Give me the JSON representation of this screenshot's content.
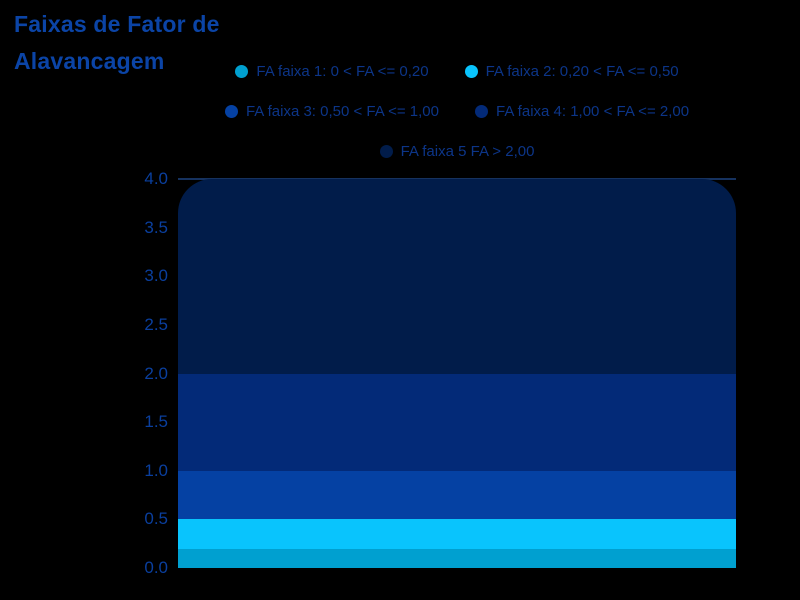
{
  "title_lines": [
    "Faixas de Fator de",
    "Alavancagem"
  ],
  "colors": {
    "background": "#000000",
    "title_text": "#0b44a6",
    "legend_text": "#0c3588",
    "axis_text": "#0a3f9e",
    "top_line": "#16325f"
  },
  "chart_data": {
    "type": "area",
    "stacked": true,
    "title": "Faixas de Fator de Alavancagem",
    "legend_position": "top-center",
    "grid": false,
    "x_axis": {
      "visible": false
    },
    "y_axis": {
      "min": 0,
      "max": 4,
      "tick_labels": [
        "4.0",
        "3.5",
        "3.0",
        "2.5",
        "2.0",
        "1.5",
        "1.0",
        "0.5",
        "0.0"
      ]
    },
    "series": [
      {
        "id": "faixa-1",
        "label": "FA faixa 1: 0 < FA <= 0,20",
        "band": [
          0,
          0.2
        ],
        "color": "#00a0d0"
      },
      {
        "id": "faixa-2",
        "label": "FA faixa 2: 0,20 < FA <= 0,50",
        "band": [
          0.2,
          0.5
        ],
        "color": "#09c4fd"
      },
      {
        "id": "faixa-3",
        "label": "FA faixa 3: 0,50 < FA <= 1,00",
        "band": [
          0.5,
          1.0
        ],
        "color": "#0541a3"
      },
      {
        "id": "faixa-4",
        "label": "FA faixa 4: 1,00 < FA <= 2,00",
        "band": [
          1.0,
          2.0
        ],
        "color": "#032a78"
      },
      {
        "id": "faixa-5",
        "label": "FA faixa 5 FA > 2,00",
        "band": [
          2.0,
          4.0
        ],
        "color": "#011c4a"
      }
    ]
  }
}
